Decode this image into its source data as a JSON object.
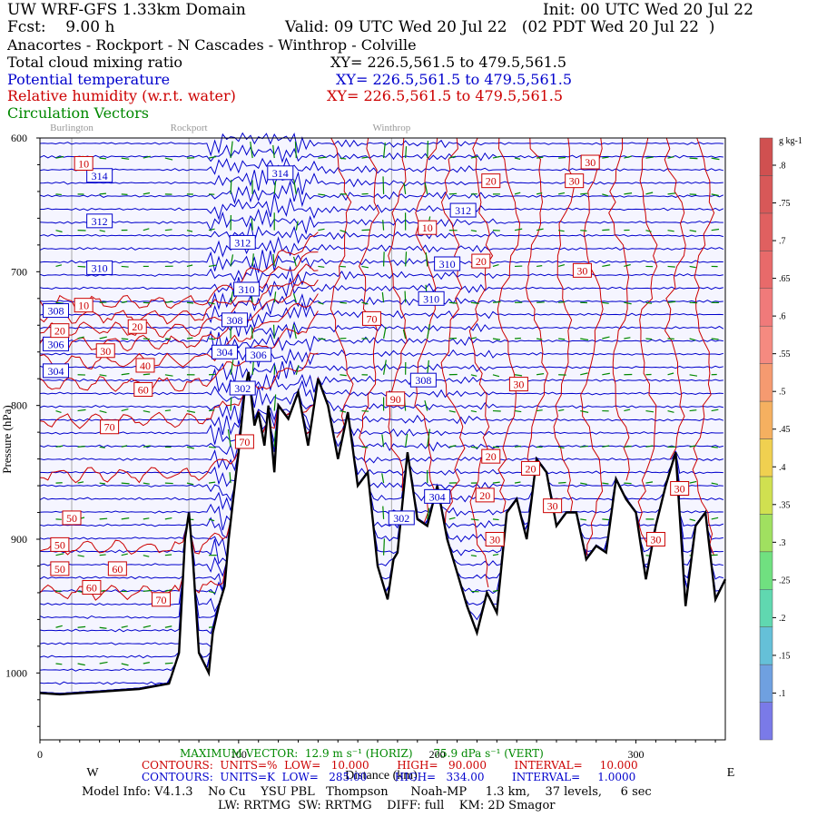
{
  "header": {
    "model": "UW WRF-GFS 1.33km Domain",
    "init": "Init: 00 UTC Wed 20 Jul 22",
    "fcst": "Fcst:    9.00 h",
    "valid": "Valid: 09 UTC Wed 20 Jul 22   (02 PDT Wed 20 Jul 22  )",
    "route": "Anacortes - Rockport - N Cascades - Winthrop - Colville",
    "field1": "Total cloud mixing ratio",
    "field1_xy": "XY= 226.5,561.5 to 479.5,561.5",
    "field2": "Potential temperature",
    "field2_xy": "XY= 226.5,561.5 to 479.5,561.5",
    "field3": "Relative humidity (w.r.t. water)",
    "field3_xy": "XY= 226.5,561.5 to 479.5,561.5",
    "field4": "Circulation Vectors"
  },
  "colors": {
    "black": "#000000",
    "potential_temperature": "#0000cc",
    "relative_humidity": "#cc0000",
    "vectors": "#008800",
    "plot_bg": "#f5f5ff",
    "town_line": "#aaaaaa"
  },
  "chart_data": {
    "type": "cross-section",
    "title": "Total cloud mixing ratio / Potential temperature / Relative humidity / Circulation Vectors",
    "xlabel": "Distance (km)",
    "ylabel": "Pressure (hPa)",
    "xlim": [
      0,
      345
    ],
    "ylim": [
      1050,
      600
    ],
    "x_ticks": [
      0,
      100,
      200,
      300
    ],
    "y_ticks": [
      600,
      700,
      800,
      900,
      1000
    ],
    "y_tick_labels": [
      "600",
      "700",
      "800",
      "900",
      "1000"
    ],
    "direction_left": "W",
    "direction_right": "E",
    "towns": [
      {
        "name": "Burlington",
        "x": 16
      },
      {
        "name": "Rockport",
        "x": 75
      },
      {
        "name": "Winthrop",
        "x": 177
      }
    ],
    "terrain": {
      "x": [
        0,
        10,
        30,
        50,
        65,
        70,
        73,
        75,
        77,
        80,
        85,
        87,
        90,
        93,
        95,
        100,
        103,
        105,
        108,
        110,
        113,
        115,
        118,
        120,
        125,
        130,
        135,
        140,
        145,
        150,
        155,
        160,
        165,
        170,
        175,
        178,
        180,
        185,
        190,
        195,
        200,
        205,
        210,
        215,
        220,
        225,
        230,
        235,
        240,
        245,
        250,
        255,
        260,
        265,
        270,
        275,
        280,
        285,
        290,
        295,
        300,
        305,
        310,
        315,
        320,
        325,
        330,
        335,
        340,
        345
      ],
      "p": [
        1015,
        1016,
        1014,
        1012,
        1008,
        985,
        900,
        880,
        915,
        985,
        1000,
        970,
        950,
        935,
        900,
        835,
        790,
        775,
        815,
        805,
        830,
        800,
        850,
        800,
        810,
        790,
        830,
        780,
        800,
        840,
        805,
        860,
        850,
        920,
        945,
        915,
        910,
        835,
        885,
        890,
        860,
        900,
        925,
        950,
        970,
        940,
        955,
        880,
        870,
        900,
        840,
        850,
        890,
        880,
        880,
        915,
        905,
        910,
        855,
        870,
        880,
        930,
        890,
        860,
        835,
        950,
        890,
        880,
        945,
        930
      ]
    },
    "legend": {
      "title": "g kg-1",
      "labels": [
        ".1",
        ".15",
        ".2",
        ".25",
        ".3",
        ".35",
        ".4",
        ".45",
        ".5",
        ".55",
        ".6",
        ".65",
        ".7",
        ".75",
        ".8"
      ]
    },
    "theta_contours": {
      "units": "K",
      "low": 285.0,
      "high": 334.0,
      "interval": 1.0,
      "labels": [
        {
          "text": "314",
          "x": 30,
          "p": 628
        },
        {
          "text": "312",
          "x": 30,
          "p": 662
        },
        {
          "text": "310",
          "x": 30,
          "p": 697
        },
        {
          "text": "308",
          "x": 8,
          "p": 729
        },
        {
          "text": "306",
          "x": 8,
          "p": 754
        },
        {
          "text": "304",
          "x": 8,
          "p": 774
        },
        {
          "text": "314",
          "x": 121,
          "p": 626
        },
        {
          "text": "312",
          "x": 102,
          "p": 678
        },
        {
          "text": "310",
          "x": 104,
          "p": 713
        },
        {
          "text": "308",
          "x": 98,
          "p": 736
        },
        {
          "text": "306",
          "x": 110,
          "p": 762
        },
        {
          "text": "304",
          "x": 93,
          "p": 760
        },
        {
          "text": "302",
          "x": 102,
          "p": 787
        },
        {
          "text": "312",
          "x": 213,
          "p": 654
        },
        {
          "text": "310",
          "x": 205,
          "p": 694
        },
        {
          "text": "310",
          "x": 197,
          "p": 720
        },
        {
          "text": "308",
          "x": 193,
          "p": 781
        },
        {
          "text": "304",
          "x": 200,
          "p": 868
        },
        {
          "text": "302",
          "x": 182,
          "p": 884
        }
      ]
    },
    "rh_contours": {
      "units": "%",
      "low": 10.0,
      "high": 90.0,
      "interval": 10.0,
      "labels": [
        {
          "text": "10",
          "x": 22,
          "p": 619
        },
        {
          "text": "10",
          "x": 22,
          "p": 725
        },
        {
          "text": "20",
          "x": 10,
          "p": 744
        },
        {
          "text": "30",
          "x": 33,
          "p": 759
        },
        {
          "text": "40",
          "x": 53,
          "p": 770
        },
        {
          "text": "60",
          "x": 52,
          "p": 788
        },
        {
          "text": "70",
          "x": 35,
          "p": 816
        },
        {
          "text": "20",
          "x": 49,
          "p": 741
        },
        {
          "text": "70",
          "x": 103,
          "p": 827
        },
        {
          "text": "50",
          "x": 16,
          "p": 884
        },
        {
          "text": "50",
          "x": 10,
          "p": 904
        },
        {
          "text": "50",
          "x": 10,
          "p": 922
        },
        {
          "text": "60",
          "x": 39,
          "p": 922
        },
        {
          "text": "60",
          "x": 26,
          "p": 936
        },
        {
          "text": "70",
          "x": 61,
          "p": 945
        },
        {
          "text": "10",
          "x": 195,
          "p": 667
        },
        {
          "text": "20",
          "x": 227,
          "p": 632
        },
        {
          "text": "20",
          "x": 222,
          "p": 692
        },
        {
          "text": "70",
          "x": 167,
          "p": 735
        },
        {
          "text": "90",
          "x": 179,
          "p": 795
        },
        {
          "text": "30",
          "x": 277,
          "p": 618
        },
        {
          "text": "30",
          "x": 269,
          "p": 632
        },
        {
          "text": "30",
          "x": 273,
          "p": 699
        },
        {
          "text": "30",
          "x": 241,
          "p": 784
        },
        {
          "text": "20",
          "x": 227,
          "p": 838
        },
        {
          "text": "20",
          "x": 247,
          "p": 847
        },
        {
          "text": "20",
          "x": 224,
          "p": 867
        },
        {
          "text": "30",
          "x": 258,
          "p": 875
        },
        {
          "text": "30",
          "x": 229,
          "p": 900
        },
        {
          "text": "30",
          "x": 322,
          "p": 862
        },
        {
          "text": "30",
          "x": 310,
          "p": 900
        }
      ]
    }
  },
  "footer": {
    "max_vector": "MAXIMUM VECTOR:  12.9 m s⁻¹ (HORIZ)      75.9 dPa s⁻¹ (VERT)",
    "contours_rh": "CONTOURS:  UNITS=%  LOW=   10.000        HIGH=   90.000        INTERVAL=     10.000",
    "contours_theta": "CONTOURS:  UNITS=K  LOW=   285.00        HIGH=   334.00        INTERVAL=     1.0000",
    "model_info": "Model Info: V4.1.3    No Cu    YSU PBL   Thompson      Noah-MP     1.3 km,    37 levels,     6 sec",
    "model_info2": "LW: RRTMG  SW: RRTMG    DIFF: full    KM: 2D Smagor"
  }
}
